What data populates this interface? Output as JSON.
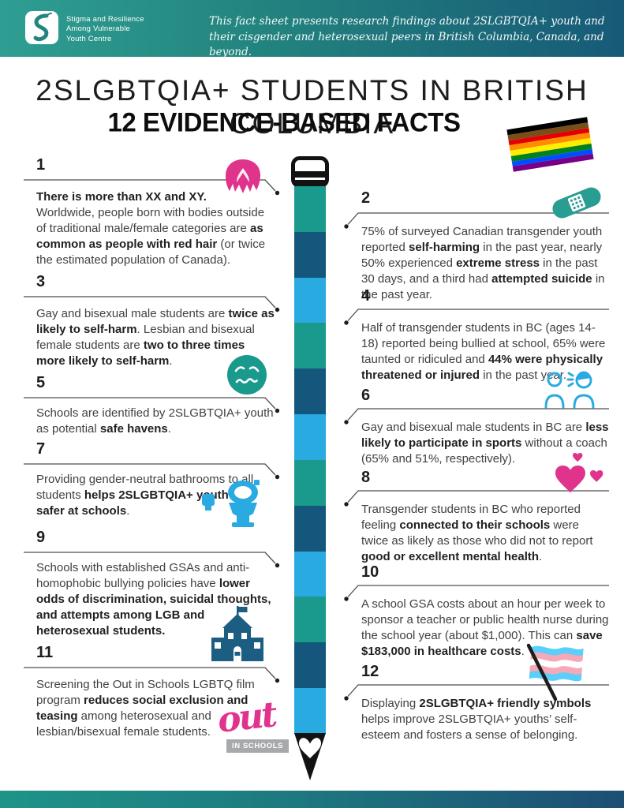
{
  "header": {
    "logo_lines": [
      "Stigma and Resilience",
      "Among Vulnerable",
      "Youth Centre"
    ],
    "tagline": "This fact sheet presents research findings about 2SLGBTQIA+ youth and their cisgender and heterosexual peers in British Columbia, Canada, and beyond."
  },
  "title": "2SLGBTQIA+ STUDENTS IN BRITISH COLUMBIA",
  "subtitle": "12 EVIDENCE-BASED FACTS",
  "facts": [
    {
      "number": "1",
      "segments": [
        {
          "b": true,
          "t": "There is more than XX and XY."
        },
        {
          "br": true
        },
        {
          "t": "Worldwide, people born with bodies outside of traditional male/female categories are "
        },
        {
          "b": true,
          "t": "as common as people with red hair"
        },
        {
          "t": " (or twice the estimated population of Canada)."
        }
      ]
    },
    {
      "number": "2",
      "segments": [
        {
          "t": "75% of surveyed Canadian transgender youth reported "
        },
        {
          "b": true,
          "t": "self-harming"
        },
        {
          "t": " in the past year, nearly 50% experienced "
        },
        {
          "b": true,
          "t": "extreme stress"
        },
        {
          "t": " in the past 30 days, and a third had "
        },
        {
          "b": true,
          "t": "attempted suicide"
        },
        {
          "t": " in the past year."
        }
      ]
    },
    {
      "number": "3",
      "segments": [
        {
          "t": "Gay and bisexual male students are "
        },
        {
          "b": true,
          "t": "twice as likely to self-harm"
        },
        {
          "t": ". Lesbian and bisexual female students are "
        },
        {
          "b": true,
          "t": "two to three times more likely to self-harm"
        },
        {
          "t": "."
        }
      ]
    },
    {
      "number": "4",
      "segments": [
        {
          "t": "Half of transgender students in BC (ages 14-18) reported being bullied at school, 65% were taunted or ridiculed and "
        },
        {
          "b": true,
          "t": "44% were physically threatened or injured"
        },
        {
          "t": " in the past year."
        }
      ]
    },
    {
      "number": "5",
      "segments": [
        {
          "t": "Schools are identified by 2SLGBTQIA+ youth as potential "
        },
        {
          "b": true,
          "t": "safe havens"
        },
        {
          "t": "."
        }
      ]
    },
    {
      "number": "6",
      "segments": [
        {
          "t": "Gay and bisexual male students in BC are "
        },
        {
          "b": true,
          "t": "less likely to participate in sports"
        },
        {
          "t": " without a coach (65% and 51%, respectively)."
        }
      ]
    },
    {
      "number": "7",
      "segments": [
        {
          "t": "Providing gender-neutral bathrooms to all students "
        },
        {
          "b": true,
          "t": "helps 2SLGBTQIA+ youth feel safer at schools"
        },
        {
          "t": "."
        }
      ]
    },
    {
      "number": "8",
      "segments": [
        {
          "t": "Transgender students in BC who reported feeling "
        },
        {
          "b": true,
          "t": "connected to their schools"
        },
        {
          "t": " were twice as likely as those who did not to report "
        },
        {
          "b": true,
          "t": "good or excellent mental health"
        },
        {
          "t": "."
        }
      ]
    },
    {
      "number": "9",
      "segments": [
        {
          "t": "Schools with established GSAs and anti-homophobic bullying policies have "
        },
        {
          "b": true,
          "t": "lower odds of discrimination, suicidal thoughts, and attempts among LGB and heterosexual students."
        }
      ]
    },
    {
      "number": "10",
      "segments": [
        {
          "t": "A school GSA costs about an hour per week to sponsor a teacher or public health nurse during the school year (about $1,000). This can "
        },
        {
          "b": true,
          "t": "save $183,000 in healthcare costs"
        },
        {
          "t": "."
        }
      ]
    },
    {
      "number": "11",
      "segments": [
        {
          "t": "Screening the Out in Schools LGBTQ film program "
        },
        {
          "b": true,
          "t": "reduces social exclusion and teasing"
        },
        {
          "t": " among heterosexual and lesbian/bisexual female students."
        }
      ]
    },
    {
      "number": "12",
      "segments": [
        {
          "t": "Displaying "
        },
        {
          "b": true,
          "t": "2SLGBTQIA+ friendly symbols"
        },
        {
          "t": " helps improve 2SLGBTQIA+ youths’ self-esteem and fosters a sense of belonging."
        }
      ]
    }
  ],
  "out_logo": {
    "word": "out",
    "sub": "IN SCHOOLS"
  },
  "colors": {
    "teal": "#1A9A8D",
    "navy": "#15567D",
    "light_blue": "#29ABE2",
    "pink": "#D9368A",
    "header_gradient_left": "#2F9E92",
    "header_gradient_right": "#175A77",
    "body_text": "#414042"
  },
  "pencil": {
    "pattern": [
      "teal",
      "navy",
      "light_blue",
      "teal",
      "navy",
      "light_blue",
      "teal",
      "navy",
      "light_blue",
      "teal",
      "navy",
      "light_blue"
    ]
  },
  "pride_flag_stripes": [
    "#000000",
    "#784F17",
    "#E50000",
    "#FF8D00",
    "#FFEE00",
    "#028121",
    "#004CFF",
    "#770088"
  ],
  "trans_flag_stripes": [
    "#5BCEFA",
    "#F5A9B8",
    "#FFFFFF",
    "#F5A9B8",
    "#5BCEFA"
  ]
}
